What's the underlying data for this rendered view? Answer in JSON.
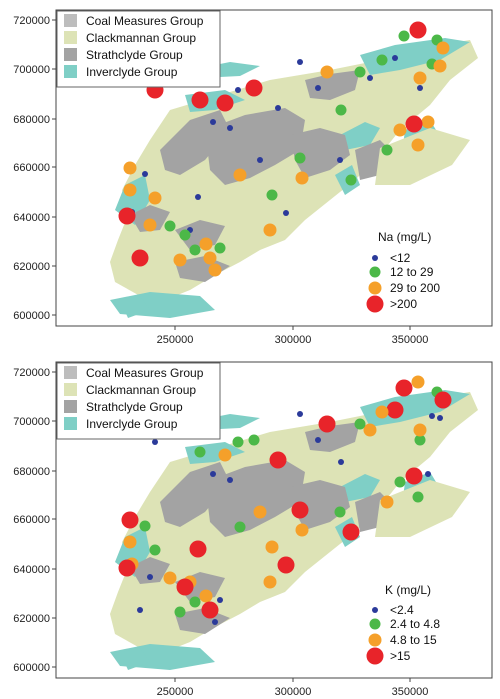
{
  "geology_legend": [
    {
      "label": "Coal Measures Group",
      "color": "#bdbdbd"
    },
    {
      "label": "Clackmannan Group",
      "color": "#dde3b6"
    },
    {
      "label": "Strathclyde Group",
      "color": "#a3a3a3"
    },
    {
      "label": "Inverclyde Group",
      "color": "#7fcfc6"
    }
  ],
  "axes": {
    "x_ticks": [
      "250000",
      "300000",
      "350000"
    ],
    "y_ticks": [
      "720000",
      "700000",
      "680000",
      "660000",
      "640000",
      "620000",
      "600000"
    ]
  },
  "panels": [
    {
      "id": "na",
      "legend_title": "Na  (mg/L)",
      "classes": [
        {
          "label": "<12",
          "color": "#2b3a9a"
        },
        {
          "label": "12 to 29",
          "color": "#4cb848"
        },
        {
          "label": "29 to 200",
          "color": "#f5a02a"
        },
        {
          "label": ">200",
          "color": "#e8242a"
        }
      ]
    },
    {
      "id": "k",
      "legend_title": "K  (mg/L)",
      "classes": [
        {
          "label": "<2.4",
          "color": "#2b3a9a"
        },
        {
          "label": "2.4 to 4.8",
          "color": "#4cb848"
        },
        {
          "label": "4.8 to 15",
          "color": "#f5a02a"
        },
        {
          "label": ">15",
          "color": "#e8242a"
        }
      ]
    }
  ]
}
